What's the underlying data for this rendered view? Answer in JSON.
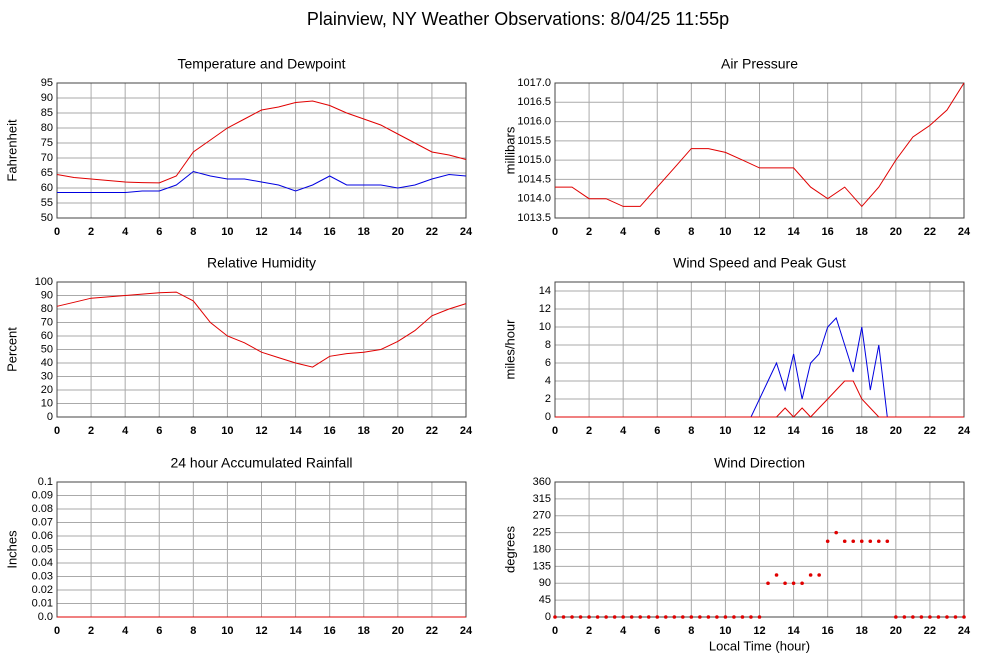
{
  "title": "Plainview, NY Weather Observations: 8/04/25 11:55p",
  "chart_data": [
    {
      "type": "line",
      "title": "Temperature and Dewpoint",
      "y_label": "Fahrenheit",
      "x": [
        0,
        1,
        2,
        3,
        4,
        5,
        6,
        7,
        8,
        9,
        10,
        11,
        12,
        13,
        14,
        15,
        16,
        17,
        18,
        19,
        20,
        21,
        22,
        23,
        24
      ],
      "series": [
        {
          "color": "#e00000",
          "values": [
            64.5,
            63.5,
            63,
            62.5,
            62,
            61.8,
            61.7,
            64,
            72,
            76,
            80,
            83,
            86,
            87,
            88.5,
            89,
            87.5,
            85,
            83,
            81,
            78,
            75,
            72,
            71,
            69.5
          ]
        },
        {
          "color": "#0000e0",
          "values": [
            58.5,
            58.5,
            58.5,
            58.5,
            58.5,
            59,
            59,
            61,
            65.5,
            64,
            63,
            63,
            62,
            61,
            59,
            61,
            64,
            61,
            61,
            61,
            60,
            61,
            63,
            64.5,
            64
          ]
        }
      ],
      "xlim": [
        0,
        24
      ],
      "xticks": [
        0,
        2,
        4,
        6,
        8,
        10,
        12,
        14,
        16,
        18,
        20,
        22,
        24
      ],
      "ylim": [
        50,
        95
      ],
      "yticks": [
        50,
        55,
        60,
        65,
        70,
        75,
        80,
        85,
        90,
        95
      ],
      "grid": true
    },
    {
      "type": "line",
      "title": "Air Pressure",
      "y_label": "millibars",
      "x": [
        0,
        1,
        2,
        3,
        4,
        5,
        6,
        7,
        8,
        9,
        10,
        11,
        12,
        13,
        14,
        15,
        16,
        17,
        18,
        19,
        20,
        21,
        22,
        23,
        24
      ],
      "series": [
        {
          "color": "#e00000",
          "values": [
            1014.3,
            1014.3,
            1014.0,
            1014.0,
            1013.8,
            1013.8,
            1014.3,
            1014.8,
            1015.3,
            1015.3,
            1015.2,
            1015.0,
            1014.8,
            1014.8,
            1014.8,
            1014.3,
            1014.0,
            1014.3,
            1013.8,
            1014.3,
            1015.0,
            1015.6,
            1015.9,
            1016.3,
            1017.0
          ]
        }
      ],
      "xlim": [
        0,
        24
      ],
      "xticks": [
        0,
        2,
        4,
        6,
        8,
        10,
        12,
        14,
        16,
        18,
        20,
        22,
        24
      ],
      "ylim": [
        1013.5,
        1017.0
      ],
      "yticks": [
        1013.5,
        {
          "value": 1014,
          "label": "1014.0"
        },
        1014.5,
        {
          "value": 1015,
          "label": "1015.0"
        },
        1015.5,
        {
          "value": 1016,
          "label": "1016.0"
        },
        1016.5,
        {
          "value": 1017,
          "label": "1017.0"
        }
      ],
      "grid": true
    },
    {
      "type": "line",
      "title": "Relative Humidity",
      "y_label": "Percent",
      "x": [
        0,
        1,
        2,
        3,
        4,
        5,
        6,
        7,
        8,
        9,
        10,
        11,
        12,
        13,
        14,
        15,
        16,
        17,
        18,
        19,
        20,
        21,
        22,
        23,
        24
      ],
      "series": [
        {
          "color": "#e00000",
          "values": [
            82,
            85,
            88,
            89,
            90,
            91,
            92,
            92.5,
            86,
            70,
            60,
            55,
            48,
            44,
            40,
            37,
            45,
            47,
            48,
            50,
            56,
            64,
            75,
            80,
            84
          ]
        }
      ],
      "xlim": [
        0,
        24
      ],
      "xticks": [
        0,
        2,
        4,
        6,
        8,
        10,
        12,
        14,
        16,
        18,
        20,
        22,
        24
      ],
      "ylim": [
        0,
        100
      ],
      "yticks": [
        0,
        10,
        20,
        30,
        40,
        50,
        60,
        70,
        80,
        90,
        100
      ],
      "grid": true
    },
    {
      "type": "line",
      "title": "Wind Speed and Peak Gust",
      "y_label": "miles/hour",
      "x": [
        0,
        0.5,
        1,
        1.5,
        2,
        2.5,
        3,
        3.5,
        4,
        4.5,
        5,
        5.5,
        6,
        6.5,
        7,
        7.5,
        8,
        8.5,
        9,
        9.5,
        10,
        10.5,
        11,
        11.5,
        12,
        12.5,
        13,
        13.5,
        14,
        14.5,
        15,
        15.5,
        16,
        16.5,
        17,
        17.5,
        18,
        18.5,
        19,
        19.5,
        20,
        20.5,
        21,
        21.5,
        22,
        22.5,
        23,
        23.5,
        24
      ],
      "series": [
        {
          "color": "#0000e0",
          "values": [
            0,
            0,
            0,
            0,
            0,
            0,
            0,
            0,
            0,
            0,
            0,
            0,
            0,
            0,
            0,
            0,
            0,
            0,
            0,
            0,
            0,
            0,
            0,
            0,
            2,
            4,
            6,
            3,
            7,
            2,
            6,
            7,
            10,
            11,
            8,
            5,
            10,
            3,
            8,
            0,
            0,
            0,
            0,
            0,
            0,
            0,
            0,
            0,
            0
          ]
        },
        {
          "color": "#e00000",
          "values": [
            0,
            0,
            0,
            0,
            0,
            0,
            0,
            0,
            0,
            0,
            0,
            0,
            0,
            0,
            0,
            0,
            0,
            0,
            0,
            0,
            0,
            0,
            0,
            0,
            0,
            0,
            0,
            1,
            0,
            1,
            0,
            1,
            2,
            3,
            4,
            4,
            2,
            1,
            0,
            0,
            0,
            0,
            0,
            0,
            0,
            0,
            0,
            0,
            0
          ]
        }
      ],
      "xlim": [
        0,
        24
      ],
      "xticks": [
        0,
        2,
        4,
        6,
        8,
        10,
        12,
        14,
        16,
        18,
        20,
        22,
        24
      ],
      "ylim": [
        0,
        15
      ],
      "yticks": [
        0,
        2,
        4,
        6,
        8,
        10,
        12,
        14
      ],
      "grid": true
    },
    {
      "type": "line",
      "title": "24 hour Accumulated Rainfall",
      "y_label": "Inches",
      "x": [
        0,
        1,
        2,
        3,
        4,
        5,
        6,
        7,
        8,
        9,
        10,
        11,
        12,
        13,
        14,
        15,
        16,
        17,
        18,
        19,
        20,
        21,
        22,
        23,
        24
      ],
      "series": [
        {
          "color": "#e00000",
          "values": [
            0,
            0,
            0,
            0,
            0,
            0,
            0,
            0,
            0,
            0,
            0,
            0,
            0,
            0,
            0,
            0,
            0,
            0,
            0,
            0,
            0,
            0,
            0,
            0,
            0
          ]
        }
      ],
      "xlim": [
        0,
        24
      ],
      "xticks": [
        0,
        2,
        4,
        6,
        8,
        10,
        12,
        14,
        16,
        18,
        20,
        22,
        24
      ],
      "ylim": [
        0,
        0.1
      ],
      "yticks": [
        {
          "value": 0,
          "label": "0.0"
        },
        0.01,
        0.02,
        0.03,
        0.04,
        0.05,
        0.06,
        0.07,
        0.08,
        0.09,
        0.1
      ],
      "grid": true
    },
    {
      "type": "scatter",
      "title": "Wind Direction",
      "y_label": "degrees",
      "x_label": "Local Time (hour)",
      "x": [
        0,
        0.5,
        1,
        1.5,
        2,
        2.5,
        3,
        3.5,
        4,
        4.5,
        5,
        5.5,
        6,
        6.5,
        7,
        7.5,
        8,
        8.5,
        9,
        9.5,
        10,
        10.5,
        11,
        11.5,
        12,
        12.5,
        13,
        13.5,
        14,
        14.5,
        15,
        15.5,
        16,
        16.5,
        17,
        17.5,
        18,
        18.5,
        19,
        19.5,
        20,
        20.5,
        21,
        21.5,
        22,
        22.5,
        23,
        23.5,
        24
      ],
      "series": [
        {
          "color": "#e00000",
          "values": [
            0,
            0,
            0,
            0,
            0,
            0,
            0,
            0,
            0,
            0,
            0,
            0,
            0,
            0,
            0,
            0,
            0,
            0,
            0,
            0,
            0,
            0,
            0,
            0,
            0,
            90,
            112,
            90,
            90,
            90,
            112,
            112,
            202,
            225,
            202,
            202,
            202,
            202,
            202,
            202,
            0,
            0,
            0,
            0,
            0,
            0,
            0,
            0,
            0
          ]
        }
      ],
      "xlim": [
        0,
        24
      ],
      "xticks": [
        0,
        2,
        4,
        6,
        8,
        10,
        12,
        14,
        16,
        18,
        20,
        22,
        24
      ],
      "ylim": [
        0,
        360
      ],
      "yticks": [
        0,
        45,
        90,
        135,
        180,
        225,
        270,
        315,
        360
      ],
      "grid": true
    }
  ]
}
